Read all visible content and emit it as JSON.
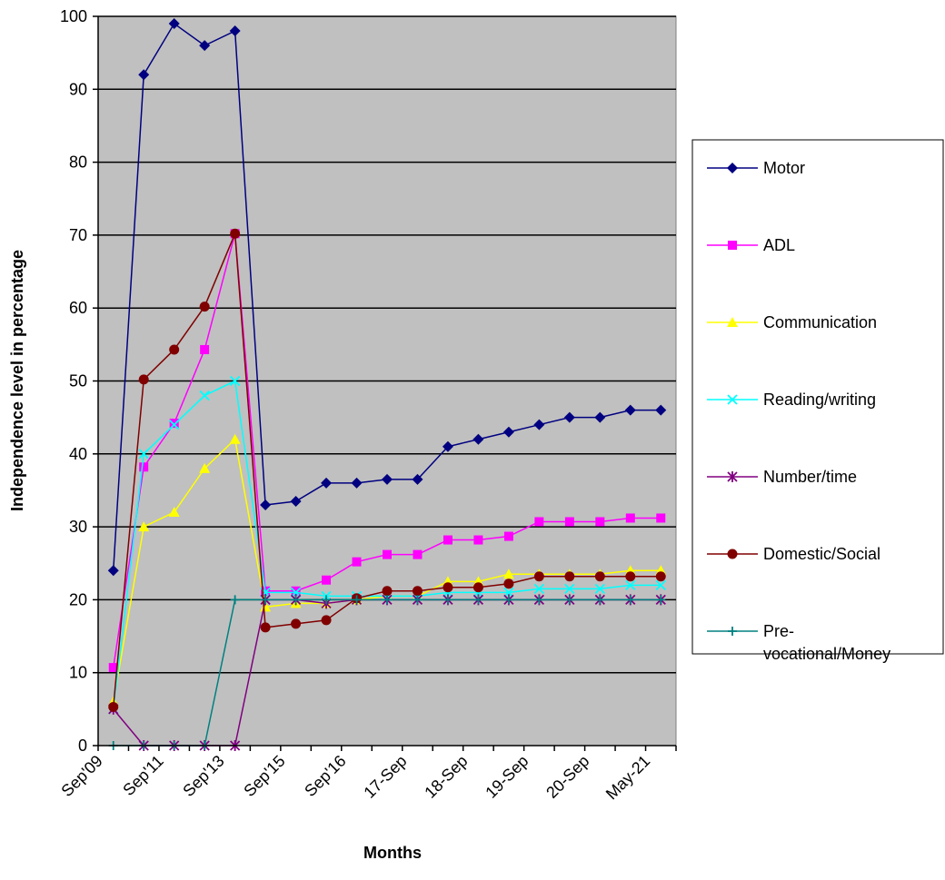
{
  "chart_data": {
    "type": "line",
    "title": "",
    "xlabel": "Months",
    "ylabel": "Independence level in percentage",
    "ylim": [
      0,
      100
    ],
    "yticks": [
      0,
      10,
      20,
      30,
      40,
      50,
      60,
      70,
      80,
      90,
      100
    ],
    "grid": true,
    "plot_background": "#c0c0c0",
    "legend_position": "right",
    "categories": [
      "Sep'09",
      "",
      "Sep'11",
      "",
      "Sep'13",
      "",
      "Sep'15",
      "",
      "Sep'16",
      "",
      "17-Sep",
      "",
      "18-Sep",
      "",
      "19-Sep",
      "",
      "20-Sep",
      "",
      "May-21"
    ],
    "series": [
      {
        "name": "Motor",
        "color": "#000080",
        "marker": "diamond",
        "values": [
          24,
          92,
          99,
          96,
          98,
          33,
          33.5,
          36,
          36,
          36.5,
          36.5,
          41,
          42,
          43,
          44,
          45,
          45,
          46,
          46
        ]
      },
      {
        "name": "ADL",
        "color": "#ff00ff",
        "marker": "square",
        "values": [
          10.7,
          38.2,
          44.2,
          54.3,
          70.2,
          21.2,
          21.2,
          22.7,
          25.2,
          26.2,
          26.2,
          28.2,
          28.2,
          28.7,
          30.7,
          30.7,
          30.7,
          31.2,
          31.2
        ]
      },
      {
        "name": "Communication",
        "color": "#ffff00",
        "marker": "triangle",
        "values": [
          6,
          30,
          32,
          38,
          42,
          19,
          19.5,
          19.5,
          20,
          20.5,
          20.5,
          22.5,
          22.5,
          23.5,
          23.5,
          23.5,
          23.5,
          24,
          24
        ]
      },
      {
        "name": "Reading/writing",
        "color": "#00ffff",
        "marker": "x",
        "values": [
          5,
          40,
          44,
          48,
          50,
          21,
          21,
          20.5,
          20.5,
          20.5,
          20.5,
          21,
          21,
          21,
          21.5,
          21.5,
          21.5,
          22,
          22
        ]
      },
      {
        "name": "Number/time",
        "color": "#800080",
        "marker": "star",
        "values": [
          5,
          0,
          0,
          0,
          0,
          20,
          20,
          19.5,
          20,
          20,
          20,
          20,
          20,
          20,
          20,
          20,
          20,
          20,
          20
        ]
      },
      {
        "name": "Domestic/Social",
        "color": "#800000",
        "marker": "circle",
        "values": [
          5.3,
          50.2,
          54.3,
          60.2,
          70.2,
          16.2,
          16.7,
          17.2,
          20.2,
          21.2,
          21.2,
          21.7,
          21.7,
          22.2,
          23.2,
          23.2,
          23.2,
          23.2,
          23.2
        ]
      },
      {
        "name": "Pre-vocational/Money",
        "color": "#008080",
        "marker": "plus",
        "values": [
          0,
          0,
          0,
          0,
          20,
          20,
          20,
          20,
          20,
          20,
          20,
          20,
          20,
          20,
          20,
          20,
          20,
          20,
          20
        ]
      }
    ],
    "legend_labels": [
      [
        "Motor"
      ],
      [
        "ADL"
      ],
      [
        "Communication"
      ],
      [
        "Reading/writing"
      ],
      [
        "Number/time"
      ],
      [
        "Domestic/Social"
      ],
      [
        "Pre-",
        "vocational/Money"
      ]
    ]
  }
}
